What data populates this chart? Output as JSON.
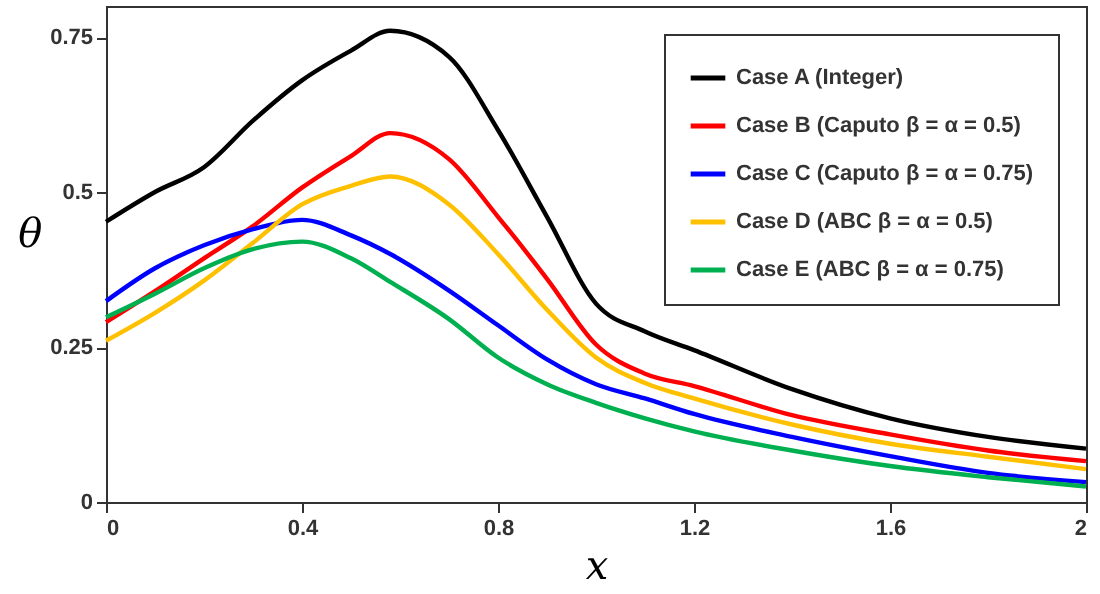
{
  "chart_data": {
    "type": "line",
    "xlabel": "x",
    "ylabel": "θ",
    "xlim": [
      0,
      2
    ],
    "ylim": [
      0,
      0.8
    ],
    "xticks": [
      0,
      0.4,
      0.8,
      1.2,
      1.6,
      2
    ],
    "yticks": [
      0,
      0.25,
      0.5,
      0.75
    ],
    "grid": false,
    "legend": "top right",
    "marker": "none",
    "line_style": "solid",
    "x": [
      0,
      0.1,
      0.2,
      0.3,
      0.4,
      0.5,
      0.58,
      0.7,
      0.8,
      0.9,
      1.0,
      1.1,
      1.2,
      1.4,
      1.6,
      1.8,
      2.0
    ],
    "series": [
      {
        "name": "Case A (Integer)",
        "color": "#000000",
        "values": [
          0.452,
          0.5,
          0.54,
          0.615,
          0.68,
          0.728,
          0.76,
          0.718,
          0.6,
          0.46,
          0.32,
          0.275,
          0.245,
          0.182,
          0.135,
          0.105,
          0.086
        ]
      },
      {
        "name": "Case B (Caputo β = α = 0.5)",
        "color": "#ff0000",
        "values": [
          0.29,
          0.34,
          0.393,
          0.445,
          0.507,
          0.558,
          0.595,
          0.553,
          0.46,
          0.36,
          0.254,
          0.207,
          0.187,
          0.14,
          0.109,
          0.083,
          0.066
        ]
      },
      {
        "name": "Case C (Caputo β = α = 0.75)",
        "color": "#0000ff",
        "values": [
          0.324,
          0.377,
          0.414,
          0.44,
          0.455,
          0.43,
          0.4,
          0.341,
          0.285,
          0.23,
          0.19,
          0.167,
          0.142,
          0.105,
          0.074,
          0.047,
          0.032
        ]
      },
      {
        "name": "Case D (ABC β = α = 0.5)",
        "color": "#ffc000",
        "values": [
          0.26,
          0.305,
          0.357,
          0.418,
          0.48,
          0.51,
          0.525,
          0.48,
          0.4,
          0.31,
          0.233,
          0.192,
          0.167,
          0.125,
          0.094,
          0.073,
          0.053
        ]
      },
      {
        "name": "Case E (ABC β = α = 0.75)",
        "color": "#00b050",
        "values": [
          0.298,
          0.336,
          0.377,
          0.408,
          0.42,
          0.393,
          0.355,
          0.295,
          0.233,
          0.19,
          0.16,
          0.135,
          0.114,
          0.083,
          0.058,
          0.04,
          0.025
        ]
      }
    ]
  }
}
